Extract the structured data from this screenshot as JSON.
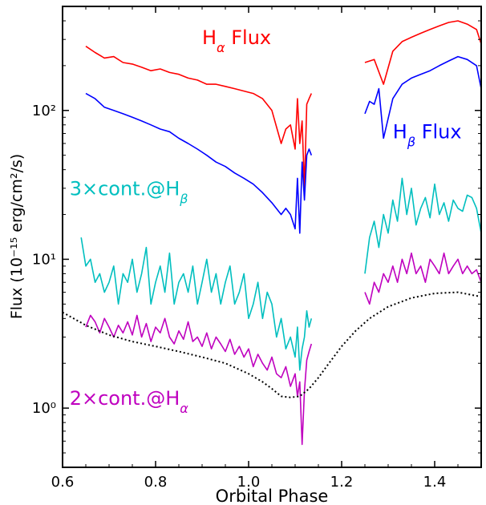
{
  "chart_data": {
    "type": "line",
    "title": "",
    "xlabel": "Orbital Phase",
    "ylabel": "Flux (10⁻¹⁵ erg/cm²/s)",
    "xlim": [
      0.6,
      1.5
    ],
    "ylim": [
      0.4,
      500
    ],
    "yscale": "log",
    "grid": false,
    "xticks": [
      "0.6",
      "0.8",
      "1.0",
      "1.2",
      "1.4"
    ],
    "xtick_values": [
      0.6,
      0.8,
      1.0,
      1.2,
      1.4
    ],
    "yticks": [
      "10⁰",
      "10¹",
      "10²"
    ],
    "ytick_values": [
      1,
      10,
      100
    ],
    "series": [
      {
        "name": "Hα Flux",
        "color": "#ff0000",
        "segments": [
          {
            "x": [
              0.65,
              0.67,
              0.69,
              0.71,
              0.73,
              0.75,
              0.77,
              0.79,
              0.81,
              0.83,
              0.85,
              0.87,
              0.89,
              0.91,
              0.93,
              0.95,
              0.97,
              0.99,
              1.01,
              1.03,
              1.05,
              1.07,
              1.08,
              1.09,
              1.1,
              1.105,
              1.11,
              1.115,
              1.12,
              1.125,
              1.13,
              1.135
            ],
            "y": [
              270,
              245,
              225,
              230,
              210,
              205,
              195,
              185,
              190,
              180,
              175,
              165,
              160,
              150,
              150,
              145,
              140,
              135,
              130,
              120,
              100,
              60,
              75,
              80,
              55,
              120,
              60,
              85,
              30,
              110,
              120,
              130
            ]
          },
          {
            "x": [
              1.25,
              1.27,
              1.29,
              1.31,
              1.33,
              1.35,
              1.37,
              1.39,
              1.41,
              1.43,
              1.45,
              1.47,
              1.49,
              1.5
            ],
            "y": [
              210,
              220,
              150,
              250,
              290,
              310,
              330,
              350,
              370,
              390,
              400,
              380,
              350,
              280
            ]
          }
        ]
      },
      {
        "name": "Hβ Flux",
        "color": "#0000ff",
        "segments": [
          {
            "x": [
              0.65,
              0.67,
              0.69,
              0.71,
              0.73,
              0.75,
              0.77,
              0.79,
              0.81,
              0.83,
              0.85,
              0.87,
              0.89,
              0.91,
              0.93,
              0.95,
              0.97,
              0.99,
              1.01,
              1.03,
              1.05,
              1.07,
              1.08,
              1.09,
              1.1,
              1.105,
              1.11,
              1.115,
              1.12,
              1.125,
              1.13,
              1.135
            ],
            "y": [
              130,
              120,
              105,
              100,
              95,
              90,
              85,
              80,
              75,
              72,
              65,
              60,
              55,
              50,
              45,
              42,
              38,
              35,
              32,
              28,
              24,
              20,
              22,
              20,
              16,
              35,
              15,
              45,
              25,
              50,
              55,
              50
            ]
          },
          {
            "x": [
              1.25,
              1.26,
              1.27,
              1.28,
              1.29,
              1.31,
              1.33,
              1.35,
              1.37,
              1.39,
              1.41,
              1.43,
              1.45,
              1.47,
              1.49,
              1.5
            ],
            "y": [
              95,
              115,
              110,
              140,
              65,
              120,
              150,
              165,
              175,
              185,
              200,
              215,
              230,
              220,
              200,
              140
            ]
          }
        ]
      },
      {
        "name": "3×cont.@Hβ",
        "color": "#00bfbf",
        "segments": [
          {
            "x": [
              0.64,
              0.65,
              0.66,
              0.67,
              0.68,
              0.69,
              0.7,
              0.71,
              0.72,
              0.73,
              0.74,
              0.75,
              0.76,
              0.77,
              0.78,
              0.79,
              0.8,
              0.81,
              0.82,
              0.83,
              0.84,
              0.85,
              0.86,
              0.87,
              0.88,
              0.89,
              0.9,
              0.91,
              0.92,
              0.93,
              0.94,
              0.95,
              0.96,
              0.97,
              0.98,
              0.99,
              1.0,
              1.01,
              1.02,
              1.03,
              1.04,
              1.05,
              1.06,
              1.07,
              1.08,
              1.09,
              1.1,
              1.105,
              1.11,
              1.115,
              1.12,
              1.125,
              1.13,
              1.135
            ],
            "y": [
              14,
              9,
              10,
              7,
              8,
              6,
              7,
              9,
              5,
              8,
              7,
              10,
              6,
              8,
              12,
              5,
              7,
              9,
              6,
              11,
              5,
              7,
              8,
              6,
              9,
              5,
              7,
              10,
              6,
              8,
              5,
              7,
              9,
              5,
              6,
              8,
              4,
              5,
              7,
              4,
              6,
              5,
              3,
              4,
              2.5,
              3,
              2.2,
              3.5,
              1.8,
              2.5,
              3,
              4.5,
              3.5,
              4
            ]
          },
          {
            "x": [
              1.25,
              1.26,
              1.27,
              1.28,
              1.29,
              1.3,
              1.31,
              1.32,
              1.33,
              1.34,
              1.35,
              1.36,
              1.37,
              1.38,
              1.39,
              1.4,
              1.41,
              1.42,
              1.43,
              1.44,
              1.45,
              1.46,
              1.47,
              1.48,
              1.49,
              1.5
            ],
            "y": [
              8,
              14,
              18,
              12,
              20,
              15,
              25,
              18,
              35,
              20,
              30,
              17,
              22,
              26,
              19,
              32,
              20,
              24,
              18,
              25,
              22,
              21,
              27,
              26,
              22,
              15
            ]
          }
        ]
      },
      {
        "name": "2×cont.@Hα",
        "color": "#bf00bf",
        "segments": [
          {
            "x": [
              0.65,
              0.66,
              0.67,
              0.68,
              0.69,
              0.7,
              0.71,
              0.72,
              0.73,
              0.74,
              0.75,
              0.76,
              0.77,
              0.78,
              0.79,
              0.8,
              0.81,
              0.82,
              0.83,
              0.84,
              0.85,
              0.86,
              0.87,
              0.88,
              0.89,
              0.9,
              0.91,
              0.92,
              0.93,
              0.94,
              0.95,
              0.96,
              0.97,
              0.98,
              0.99,
              1.0,
              1.01,
              1.02,
              1.03,
              1.04,
              1.05,
              1.06,
              1.07,
              1.08,
              1.09,
              1.1,
              1.105,
              1.11,
              1.115,
              1.12,
              1.125,
              1.13,
              1.135
            ],
            "y": [
              3.5,
              4.2,
              3.8,
              3.2,
              4.0,
              3.5,
              3.0,
              3.6,
              3.2,
              3.8,
              3.1,
              4.2,
              3.0,
              3.7,
              2.8,
              3.5,
              3.2,
              4.0,
              3.0,
              2.7,
              3.3,
              2.9,
              3.8,
              2.8,
              3.0,
              2.6,
              3.2,
              2.5,
              3.0,
              2.7,
              2.4,
              2.9,
              2.3,
              2.6,
              2.2,
              2.5,
              1.9,
              2.3,
              2.0,
              1.8,
              2.2,
              1.7,
              1.6,
              1.9,
              1.4,
              1.7,
              1.2,
              1.5,
              0.57,
              1.3,
              2.1,
              2.4,
              2.7
            ]
          },
          {
            "x": [
              1.25,
              1.26,
              1.27,
              1.28,
              1.29,
              1.3,
              1.31,
              1.32,
              1.33,
              1.34,
              1.35,
              1.36,
              1.37,
              1.38,
              1.39,
              1.4,
              1.41,
              1.42,
              1.43,
              1.44,
              1.45,
              1.46,
              1.47,
              1.48,
              1.49,
              1.5
            ],
            "y": [
              6,
              5,
              7,
              6,
              8,
              7,
              9,
              7,
              10,
              8,
              11,
              8,
              9,
              7,
              10,
              9,
              8,
              11,
              8,
              9,
              10,
              8,
              9,
              8,
              8.5,
              7
            ]
          }
        ]
      },
      {
        "name": "",
        "color": "#000000",
        "style": "dotted",
        "segments": [
          {
            "x": [
              0.6,
              0.65,
              0.7,
              0.75,
              0.8,
              0.85,
              0.9,
              0.95,
              1.0,
              1.03,
              1.05,
              1.07,
              1.09,
              1.11,
              1.13,
              1.15,
              1.17,
              1.2,
              1.23,
              1.26,
              1.3,
              1.35,
              1.4,
              1.45,
              1.5
            ],
            "y": [
              4.4,
              3.6,
              3.1,
              2.8,
              2.6,
              2.4,
              2.2,
              2.0,
              1.7,
              1.5,
              1.35,
              1.2,
              1.18,
              1.2,
              1.35,
              1.6,
              1.95,
              2.6,
              3.3,
              4.0,
              4.8,
              5.5,
              5.9,
              6.0,
              5.6
            ]
          }
        ]
      }
    ],
    "annotations": [
      {
        "key": "ha",
        "base": "H",
        "sub": "α",
        "suffix": " Flux",
        "color": "#ff0000",
        "x": 0.9,
        "y": 280
      },
      {
        "key": "hb",
        "base": "H",
        "sub": "β",
        "suffix": " Flux",
        "color": "#0000ff",
        "x": 1.31,
        "y": 65
      },
      {
        "key": "cont3",
        "base": "3×cont.@H",
        "sub": "β",
        "suffix": "",
        "color": "#00bfbf",
        "x": 0.615,
        "y": 27
      },
      {
        "key": "cont2",
        "base": "2×cont.@H",
        "sub": "α",
        "suffix": "",
        "color": "#bf00bf",
        "x": 0.615,
        "y": 1.05
      }
    ]
  }
}
